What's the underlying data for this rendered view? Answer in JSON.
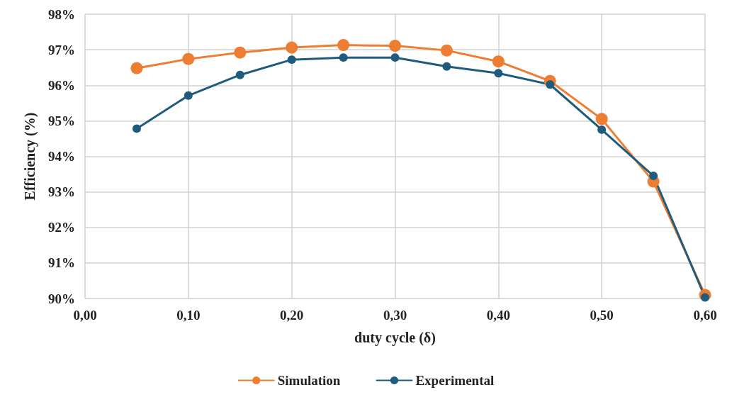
{
  "chart_data": {
    "type": "line",
    "xlabel": "duty cycle (δ)",
    "ylabel": "Efficiency (%)",
    "x": [
      0.05,
      0.1,
      0.15,
      0.2,
      0.25,
      0.3,
      0.35,
      0.4,
      0.45,
      0.5,
      0.55,
      0.6
    ],
    "series": [
      {
        "name": "Simulation",
        "color": "#ed7d31",
        "values": [
          96.48,
          96.74,
          96.92,
          97.06,
          97.13,
          97.11,
          96.98,
          96.67,
          96.12,
          95.05,
          93.29,
          90.1
        ]
      },
      {
        "name": "Experimental",
        "color": "#1f5b7d",
        "values": [
          94.78,
          95.71,
          96.29,
          96.72,
          96.78,
          96.78,
          96.53,
          96.34,
          96.02,
          94.75,
          93.45,
          90.03
        ]
      }
    ],
    "xlim": [
      0,
      0.6
    ],
    "xticks": [
      {
        "value": 0,
        "label": "0,00"
      },
      {
        "value": 0.1,
        "label": "0,10"
      },
      {
        "value": 0.2,
        "label": "0,20"
      },
      {
        "value": 0.3,
        "label": "0,30"
      },
      {
        "value": 0.4,
        "label": "0,40"
      },
      {
        "value": 0.5,
        "label": "0,50"
      },
      {
        "value": 0.6,
        "label": "0,60"
      }
    ],
    "ylim": [
      90,
      98
    ],
    "yticks": [
      {
        "value": 90,
        "label": "90%"
      },
      {
        "value": 91,
        "label": "91%"
      },
      {
        "value": 92,
        "label": "92%"
      },
      {
        "value": 93,
        "label": "93%"
      },
      {
        "value": 94,
        "label": "94%"
      },
      {
        "value": 95,
        "label": "95%"
      },
      {
        "value": 96,
        "label": "96%"
      },
      {
        "value": 97,
        "label": "97%"
      },
      {
        "value": 98,
        "label": "98%"
      }
    ],
    "grid": true,
    "legend": "bottom",
    "marker": "circle",
    "line_style": "solid"
  }
}
